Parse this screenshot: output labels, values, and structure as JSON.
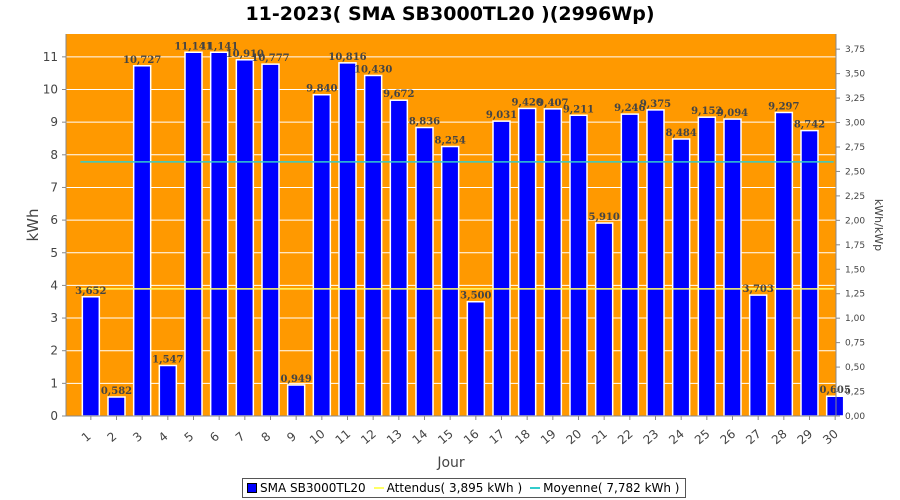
{
  "chart_data": {
    "type": "bar",
    "title": "11-2023( SMA SB3000TL20 )(2996Wp)",
    "xlabel": "Jour",
    "ylabel": "kWh",
    "y2label": "kWh/kWp",
    "categories": [
      "1",
      "2",
      "3",
      "4",
      "5",
      "6",
      "7",
      "8",
      "9",
      "10",
      "11",
      "12",
      "13",
      "14",
      "15",
      "16",
      "17",
      "18",
      "19",
      "20",
      "21",
      "22",
      "23",
      "24",
      "25",
      "26",
      "27",
      "28",
      "29",
      "30"
    ],
    "values": [
      3.652,
      0.582,
      10.727,
      1.547,
      11.141,
      11.141,
      10.91,
      10.777,
      0.949,
      9.84,
      10.816,
      10.43,
      9.672,
      8.836,
      8.254,
      3.5,
      9.031,
      9.42,
      9.407,
      9.211,
      5.91,
      9.246,
      9.375,
      8.484,
      9.152,
      9.094,
      3.703,
      9.297,
      8.742,
      0.605
    ],
    "value_labels": [
      "3,652",
      "0,582",
      "10,727",
      "1,547",
      "11,141",
      "11,141",
      "10,910",
      "10,777",
      "0,949",
      "9,840",
      "10,816",
      "10,430",
      "9,672",
      "8,836",
      "8,254",
      "3,500",
      "9,031",
      "9,420",
      "9,407",
      "9,211",
      "5,910",
      "9,246",
      "9,375",
      "8,484",
      "9,152",
      "9,094",
      "3,703",
      "9,297",
      "8,742",
      "0,605"
    ],
    "ylim": [
      0,
      11.7
    ],
    "yticks": [
      "0",
      "1",
      "2",
      "3",
      "4",
      "5",
      "6",
      "7",
      "8",
      "9",
      "10",
      "11"
    ],
    "y2lim": [
      0,
      3.905
    ],
    "y2ticks": [
      "0,00",
      "0,25",
      "0,50",
      "0,75",
      "1,00",
      "1,25",
      "1,50",
      "1,75",
      "2,00",
      "2,25",
      "2,50",
      "2,75",
      "3,00",
      "3,25",
      "3,50",
      "3,75"
    ],
    "series": [
      {
        "name": "SMA SB3000TL20",
        "kind": "bar",
        "color": "#0000ff"
      },
      {
        "name": "Attendus( 3,895 kWh )",
        "kind": "line",
        "value": 3.895,
        "color": "#ffff66"
      },
      {
        "name": "Moyenne( 7,782 kWh )",
        "kind": "line",
        "value": 7.782,
        "color": "#33cccc"
      }
    ],
    "plot_background": "#ff9900",
    "grid": true,
    "legend_position": "bottom"
  }
}
